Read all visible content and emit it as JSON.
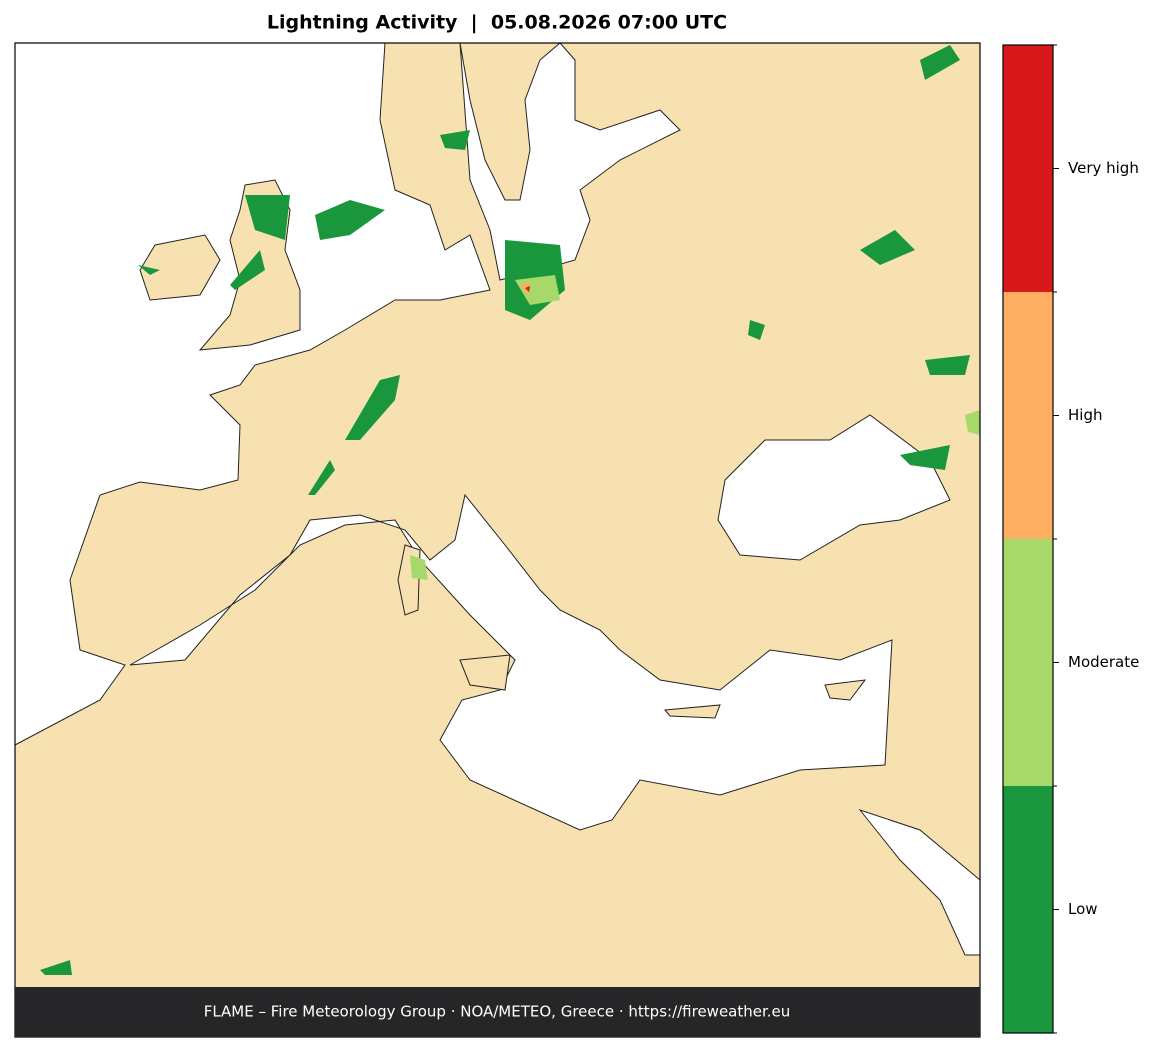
{
  "header": {
    "title": "Lightning Activity  |  05.08.2026 07:00 UTC"
  },
  "footer": {
    "text": "FLAME – Fire Meteorology Group · NOA/METEO, Greece · https://fireweather.eu"
  },
  "legend": {
    "levels": [
      {
        "label": "Low",
        "color": "#1a963c"
      },
      {
        "label": "Moderate",
        "color": "#a6d96a"
      },
      {
        "label": "High",
        "color": "#fdae61"
      },
      {
        "label": "Very high",
        "color": "#d7191c"
      }
    ]
  }
}
